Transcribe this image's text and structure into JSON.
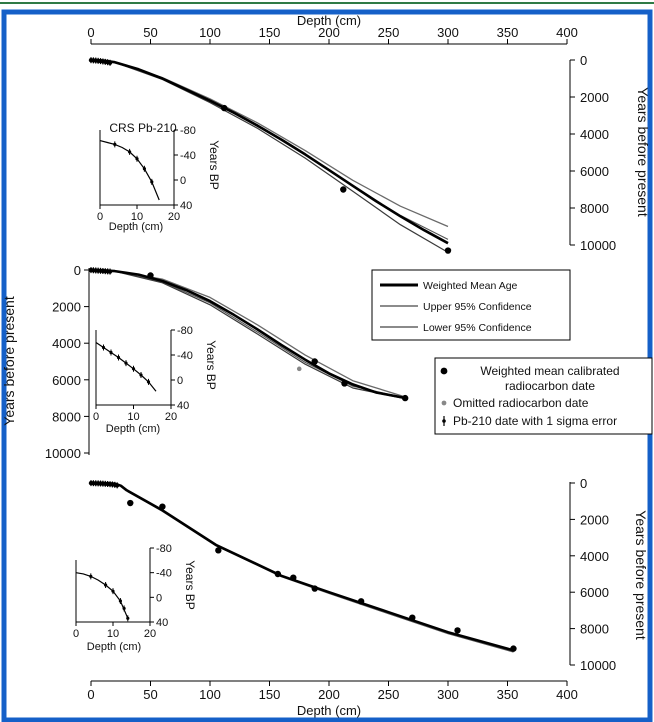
{
  "frame": {
    "border_color": "#1560c8",
    "top_line_color": "#2f7a45"
  },
  "chart_data": [
    {
      "type": "line",
      "panel": "top",
      "xlabel": "Depth (cm)",
      "ylabel": "Years before present",
      "xlim": [
        0,
        400
      ],
      "ylim": [
        0,
        10000
      ],
      "y_inverted": true,
      "x_axis_position": "top",
      "y_axis_position": "right",
      "x_ticks": [
        0,
        50,
        100,
        150,
        200,
        250,
        300,
        350,
        400
      ],
      "y_ticks": [
        0,
        2000,
        4000,
        6000,
        8000,
        10000
      ],
      "series": [
        {
          "role": "mean",
          "x": [
            0,
            10,
            20,
            40,
            60,
            80,
            100,
            120,
            140,
            160,
            180,
            200,
            220,
            240,
            260,
            280,
            300
          ],
          "y": [
            0,
            30,
            120,
            500,
            1000,
            1600,
            2200,
            2850,
            3550,
            4300,
            5100,
            5950,
            6800,
            7650,
            8450,
            9200,
            9900
          ]
        },
        {
          "role": "upper",
          "x": [
            0,
            20,
            60,
            100,
            140,
            180,
            220,
            260,
            300
          ],
          "y": [
            0,
            110,
            950,
            2100,
            3400,
            4900,
            6500,
            7900,
            9000
          ]
        },
        {
          "role": "lower",
          "x": [
            0,
            20,
            60,
            100,
            140,
            180,
            220,
            260,
            300
          ],
          "y": [
            0,
            130,
            1050,
            2300,
            3700,
            5300,
            7100,
            8900,
            10400
          ]
        },
        {
          "role": "extra",
          "x": [
            0,
            20,
            60,
            100,
            140,
            180,
            220,
            260,
            300
          ],
          "y": [
            0,
            120,
            1000,
            2200,
            3550,
            5100,
            6800,
            8400,
            9700
          ]
        }
      ],
      "radiocarbon": {
        "x": [
          112,
          212,
          300
        ],
        "y": [
          2600,
          7000,
          10300
        ]
      },
      "pb210": {
        "x": [
          0,
          2,
          4,
          6,
          8,
          10,
          12,
          14,
          16
        ],
        "y": [
          10,
          20,
          30,
          45,
          60,
          80,
          100,
          120,
          150
        ]
      },
      "inset": {
        "title": "CRS Pb-210",
        "xlabel": "Depth (cm)",
        "ylabel": "Years BP",
        "xlim": [
          0,
          20
        ],
        "ylim": [
          -80,
          40
        ],
        "x_ticks": [
          0,
          10,
          20
        ],
        "y_ticks": [
          -80,
          -40,
          0,
          40
        ],
        "line": {
          "x": [
            0,
            2,
            4,
            6,
            8,
            10,
            12,
            14,
            16
          ],
          "y": [
            -63,
            -60,
            -57,
            -52,
            -45,
            -34,
            -18,
            3,
            32
          ]
        },
        "points": {
          "x": [
            4,
            8,
            10,
            12,
            14
          ],
          "y": [
            -57,
            -45,
            -34,
            -18,
            3
          ]
        }
      }
    },
    {
      "type": "line",
      "panel": "middle",
      "ylabel": "Years before present",
      "xlim": [
        0,
        400
      ],
      "ylim": [
        0,
        10000
      ],
      "y_inverted": true,
      "y_axis_position": "left",
      "y_ticks": [
        0,
        2000,
        4000,
        6000,
        8000,
        10000
      ],
      "series": [
        {
          "role": "mean",
          "x": [
            0,
            10,
            20,
            40,
            60,
            80,
            100,
            120,
            140,
            160,
            180,
            200,
            220,
            240,
            265
          ],
          "y": [
            0,
            20,
            60,
            250,
            600,
            1100,
            1700,
            2450,
            3250,
            4100,
            4900,
            5650,
            6250,
            6700,
            7000
          ]
        },
        {
          "role": "upper",
          "x": [
            0,
            20,
            60,
            100,
            140,
            180,
            220,
            265
          ],
          "y": [
            0,
            50,
            500,
            1500,
            3000,
            4650,
            6050,
            6950
          ]
        },
        {
          "role": "lower",
          "x": [
            0,
            20,
            60,
            100,
            140,
            180,
            220,
            265
          ],
          "y": [
            0,
            70,
            700,
            1900,
            3500,
            5150,
            6450,
            7050
          ]
        },
        {
          "role": "extra",
          "x": [
            0,
            20,
            60,
            100,
            140,
            180,
            220,
            265
          ],
          "y": [
            0,
            60,
            650,
            1800,
            3400,
            5050,
            6350,
            7000
          ]
        }
      ],
      "radiocarbon": {
        "x": [
          50,
          188,
          213,
          264
        ],
        "y": [
          300,
          5000,
          6200,
          7000
        ]
      },
      "omitted": {
        "x": [
          175
        ],
        "y": [
          5400
        ]
      },
      "pb210": {
        "x": [
          0,
          2,
          4,
          6,
          8,
          10,
          12,
          14,
          16
        ],
        "y": [
          5,
          15,
          25,
          35,
          45,
          55,
          65,
          75,
          85
        ]
      },
      "inset": {
        "xlabel": "Depth (cm)",
        "ylabel": "Years BP",
        "xlim": [
          0,
          20
        ],
        "ylim": [
          -80,
          40
        ],
        "x_ticks": [
          0,
          10,
          20
        ],
        "y_ticks": [
          -80,
          -40,
          0,
          40
        ],
        "line": {
          "x": [
            0,
            2,
            4,
            6,
            8,
            10,
            12,
            14,
            16
          ],
          "y": [
            -60,
            -52,
            -44,
            -36,
            -27,
            -18,
            -8,
            3,
            18
          ]
        },
        "points": {
          "x": [
            2,
            4,
            6,
            8,
            10,
            12,
            14
          ],
          "y": [
            -52,
            -44,
            -36,
            -27,
            -18,
            -8,
            3
          ]
        }
      }
    },
    {
      "type": "line",
      "panel": "bottom",
      "xlabel": "Depth (cm)",
      "ylabel": "Years before present",
      "xlim": [
        0,
        400
      ],
      "ylim": [
        0,
        10000
      ],
      "y_inverted": true,
      "x_axis_position": "bottom",
      "y_axis_position": "right",
      "x_ticks": [
        0,
        50,
        100,
        150,
        200,
        250,
        300,
        350,
        400
      ],
      "y_ticks": [
        0,
        2000,
        4000,
        6000,
        8000,
        10000
      ],
      "series": [
        {
          "role": "mean",
          "x": [
            0,
            10,
            20,
            25,
            30,
            60,
            105,
            160,
            200,
            250,
            300,
            355
          ],
          "y": [
            0,
            10,
            40,
            150,
            400,
            1500,
            3400,
            5100,
            6000,
            7100,
            8200,
            9200
          ]
        },
        {
          "role": "extra",
          "x": [
            0,
            25,
            30,
            60,
            105,
            160,
            200,
            250,
            300,
            355
          ],
          "y": [
            0,
            170,
            430,
            1560,
            3450,
            5150,
            6070,
            7180,
            8280,
            9290
          ]
        }
      ],
      "radiocarbon": {
        "x": [
          33,
          60,
          107,
          157,
          170,
          188,
          227,
          270,
          308,
          355
        ],
        "y": [
          1100,
          1300,
          3700,
          5000,
          5200,
          5800,
          6500,
          7400,
          8100,
          9100
        ]
      },
      "pb210": {
        "x": [
          0,
          2,
          4,
          6,
          8,
          10,
          12,
          14,
          16,
          18,
          20,
          22
        ],
        "y": [
          5,
          10,
          15,
          20,
          28,
          35,
          45,
          55,
          65,
          80,
          100,
          130
        ]
      },
      "inset": {
        "xlabel": "Depth (cm)",
        "ylabel": "Years BP",
        "xlim": [
          0,
          20
        ],
        "ylim": [
          -80,
          40
        ],
        "x_ticks": [
          0,
          10,
          20
        ],
        "y_ticks": [
          -80,
          -40,
          0,
          40
        ],
        "line": {
          "x": [
            0,
            2,
            4,
            6,
            8,
            10,
            12,
            14
          ],
          "y": [
            -40,
            -38,
            -34,
            -28,
            -20,
            -10,
            6,
            34
          ]
        },
        "points": {
          "x": [
            4,
            8,
            10,
            12,
            13,
            14
          ],
          "y": [
            -34,
            -20,
            -10,
            6,
            18,
            34
          ]
        }
      }
    }
  ],
  "legend_lines": [
    {
      "label": "Weighted Mean Age",
      "color": "#000000",
      "width": 3
    },
    {
      "label": "Upper 95% Confidence",
      "color": "#666666",
      "width": 1.4
    },
    {
      "label": "Lower 95% Confidence",
      "color": "#444444",
      "width": 1.2
    }
  ],
  "legend_markers": [
    {
      "label_lines": [
        "Weighted mean calibrated",
        "radiocarbon date"
      ],
      "marker": "dot"
    },
    {
      "label_lines": [
        "Omitted radiocarbon date"
      ],
      "marker": "grey-dot"
    },
    {
      "label_lines": [
        "Pb-210 date with 1 sigma error"
      ],
      "marker": "errorbar"
    }
  ]
}
